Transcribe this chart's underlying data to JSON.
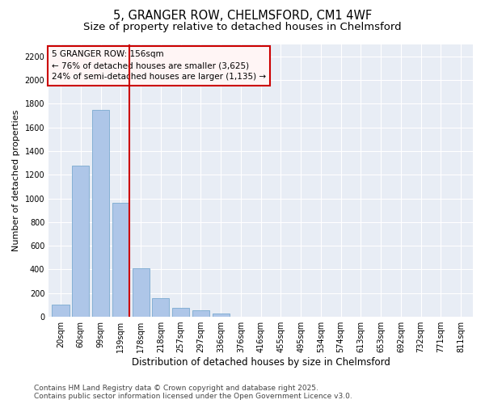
{
  "title_line1": "5, GRANGER ROW, CHELMSFORD, CM1 4WF",
  "title_line2": "Size of property relative to detached houses in Chelmsford",
  "xlabel": "Distribution of detached houses by size in Chelmsford",
  "ylabel": "Number of detached properties",
  "categories": [
    "20sqm",
    "60sqm",
    "99sqm",
    "139sqm",
    "178sqm",
    "218sqm",
    "257sqm",
    "297sqm",
    "336sqm",
    "376sqm",
    "416sqm",
    "455sqm",
    "495sqm",
    "534sqm",
    "574sqm",
    "613sqm",
    "653sqm",
    "692sqm",
    "732sqm",
    "771sqm",
    "811sqm"
  ],
  "values": [
    100,
    1275,
    1750,
    960,
    410,
    160,
    75,
    55,
    25,
    0,
    0,
    0,
    0,
    0,
    0,
    0,
    0,
    0,
    0,
    0,
    0
  ],
  "bar_color": "#aec6e8",
  "bar_edgecolor": "#7aaad0",
  "vline_x_index": 3.45,
  "vline_color": "#cc0000",
  "annotation_text": "5 GRANGER ROW: 156sqm\n← 76% of detached houses are smaller (3,625)\n24% of semi-detached houses are larger (1,135) →",
  "annotation_box_facecolor": "#fff5f5",
  "annotation_box_edgecolor": "#cc0000",
  "ylim": [
    0,
    2300
  ],
  "yticks": [
    0,
    200,
    400,
    600,
    800,
    1000,
    1200,
    1400,
    1600,
    1800,
    2000,
    2200
  ],
  "bg_color": "#ffffff",
  "plot_bg_color": "#e8edf5",
  "footer_line1": "Contains HM Land Registry data © Crown copyright and database right 2025.",
  "footer_line2": "Contains public sector information licensed under the Open Government Licence v3.0.",
  "title_fontsize": 10.5,
  "subtitle_fontsize": 9.5,
  "ylabel_fontsize": 8,
  "xlabel_fontsize": 8.5,
  "tick_fontsize": 7,
  "annotation_fontsize": 7.5,
  "footer_fontsize": 6.5
}
